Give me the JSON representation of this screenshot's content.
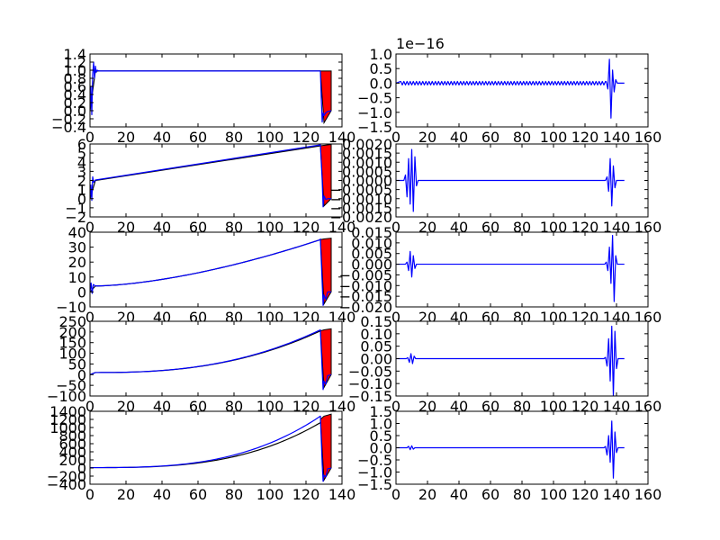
{
  "chart_data": [
    {
      "type": "line",
      "panel": "left-1",
      "xlim": [
        0,
        140
      ],
      "ylim": [
        -0.4,
        1.4
      ],
      "xticks": [
        0,
        20,
        40,
        60,
        80,
        100,
        120,
        140
      ],
      "yticks": [
        -0.4,
        -0.2,
        0.0,
        0.2,
        0.4,
        0.6,
        0.8,
        1.0,
        1.2,
        1.4
      ],
      "xtick_labels": [
        "0",
        "20",
        "40",
        "60",
        "80",
        "100",
        "120",
        "140"
      ],
      "ytick_labels": [
        "−0.4",
        "−0.2",
        "0.0",
        "0.2",
        "0.4",
        "0.6",
        "0.8",
        "1.0",
        "1.2",
        "1.4"
      ],
      "offset_label": "",
      "series": [
        {
          "color": "#000000",
          "x": [
            0,
            1.5,
            3,
            128
          ],
          "y": [
            0,
            0.5,
            0.98,
            0.98
          ]
        },
        {
          "color": "#0000ff",
          "x": [
            0,
            0.5,
            1,
            1.5,
            2,
            2.5,
            3,
            3.5,
            4,
            5,
            128,
            128.5,
            129,
            129.5,
            130,
            131,
            132,
            134
          ],
          "y": [
            0,
            0.6,
            -0.1,
            0.9,
            1.2,
            0.8,
            1.1,
            0.95,
            1.0,
            0.98,
            0.98,
            0.3,
            -0.28,
            -0.05,
            -0.12,
            -0.05,
            -0.02,
            0.0
          ]
        }
      ],
      "fill": {
        "color": "#ff0000",
        "x": [
          128,
          130,
          134
        ],
        "y_top": [
          0.98,
          0.98,
          0.98
        ],
        "y_bottom": [
          0.98,
          -0.3,
          0.0
        ]
      }
    },
    {
      "type": "line",
      "panel": "right-1",
      "xlim": [
        0,
        160
      ],
      "ylim": [
        -1.5,
        1.0
      ],
      "xticks": [
        0,
        20,
        40,
        60,
        80,
        100,
        120,
        140,
        160
      ],
      "yticks": [
        -1.5,
        -1.0,
        -0.5,
        0.0,
        0.5,
        1.0
      ],
      "xtick_labels": [
        "0",
        "20",
        "40",
        "60",
        "80",
        "100",
        "120",
        "140",
        "160"
      ],
      "ytick_labels": [
        "−1.5",
        "−1.0",
        "−0.5",
        "0.0",
        "0.5",
        "1.0"
      ],
      "offset_label": "1e−16",
      "wave": {
        "zigzag": {
          "from": 3,
          "to": 133,
          "amplitude": 0.06,
          "period": 2
        },
        "burst": {
          "center": 137,
          "amplitudes": [
            0.05,
            -0.2,
            0.82,
            -1.2,
            0.45,
            -0.3,
            0.12
          ]
        },
        "end": 145
      }
    },
    {
      "type": "line",
      "panel": "left-2",
      "xlim": [
        0,
        140
      ],
      "ylim": [
        -2,
        6
      ],
      "xticks": [
        0,
        20,
        40,
        60,
        80,
        100,
        120,
        140
      ],
      "yticks": [
        -2,
        -1,
        0,
        1,
        2,
        3,
        4,
        5,
        6
      ],
      "xtick_labels": [
        "0",
        "20",
        "40",
        "60",
        "80",
        "100",
        "120",
        "140"
      ],
      "ytick_labels": [
        "−2",
        "−1",
        "0",
        "1",
        "2",
        "3",
        "4",
        "5",
        "6"
      ],
      "offset_label": "",
      "series": [
        {
          "color": "#000000",
          "x": [
            0,
            3,
            128
          ],
          "y": [
            0,
            2.0,
            5.8
          ]
        },
        {
          "color": "#0000ff",
          "x": [
            0,
            0.5,
            1,
            1.5,
            2,
            3,
            128,
            129,
            129.5,
            130,
            131,
            132,
            134
          ],
          "y": [
            0,
            1.5,
            -0.2,
            2.4,
            1.8,
            2.05,
            5.9,
            2.0,
            -0.9,
            0.3,
            -0.1,
            0.0,
            0.0
          ]
        }
      ],
      "fill": {
        "color": "#ff0000",
        "x": [
          128,
          130,
          134
        ],
        "y_top": [
          5.8,
          5.85,
          5.95
        ],
        "y_bottom": [
          5.8,
          -0.8,
          0.0
        ]
      }
    },
    {
      "type": "line",
      "panel": "right-2",
      "xlim": [
        0,
        160
      ],
      "ylim": [
        -0.002,
        0.002
      ],
      "xticks": [
        0,
        20,
        40,
        60,
        80,
        100,
        120,
        140,
        160
      ],
      "yticks": [
        -0.002,
        -0.0015,
        -0.001,
        -0.0005,
        0.0,
        0.0005,
        0.001,
        0.0015,
        0.002
      ],
      "xtick_labels": [
        "0",
        "20",
        "40",
        "60",
        "80",
        "100",
        "120",
        "140",
        "160"
      ],
      "ytick_labels": [
        "−0.0020",
        "−0.0015",
        "−0.0010",
        "−0.0005",
        "0.0000",
        "0.0005",
        "0.0010",
        "0.0015",
        "0.0020"
      ],
      "offset_label": "",
      "wave": {
        "early": {
          "center": 10,
          "amplitudes": [
            0.0003,
            -0.0009,
            0.0012,
            -0.0013,
            0.0017,
            -0.0017,
            0.0013,
            -0.0003
          ]
        },
        "burst": {
          "center": 137,
          "amplitudes": [
            0.0002,
            -0.0006,
            0.0012,
            -0.0014,
            0.0008,
            -0.0004
          ]
        },
        "end": 145
      }
    },
    {
      "type": "line",
      "panel": "left-3",
      "xlim": [
        0,
        140
      ],
      "ylim": [
        -10,
        40
      ],
      "xticks": [
        0,
        20,
        40,
        60,
        80,
        100,
        120,
        140
      ],
      "yticks": [
        -10,
        0,
        10,
        20,
        30,
        40
      ],
      "xtick_labels": [
        "0",
        "20",
        "40",
        "60",
        "80",
        "100",
        "120",
        "140"
      ],
      "ytick_labels": [
        "−10",
        "0",
        "10",
        "20",
        "30",
        "40"
      ],
      "offset_label": "",
      "series": [
        {
          "color": "#000000",
          "curve": {
            "a": 4,
            "b": 31,
            "p": 1.6,
            "x0": 3,
            "x1": 128
          },
          "lead": {
            "x": [
              0,
              3
            ],
            "y": [
              0,
              4
            ]
          }
        },
        {
          "color": "#0000ff",
          "curve": {
            "a": 4,
            "b": 31,
            "p": 1.6,
            "x0": 3,
            "x1": 128
          },
          "lead": {
            "x": [
              0,
              0.6,
              1.2,
              1.8,
              3
            ],
            "y": [
              0,
              6,
              -1,
              5,
              4
            ]
          },
          "tail": {
            "x": [
              128,
              129,
              129.5,
              130,
              131,
              132,
              134
            ],
            "y": [
              35.5,
              6,
              -9,
              -2,
              -5,
              0,
              0
            ]
          }
        }
      ],
      "fill": {
        "color": "#ff0000",
        "x": [
          128,
          130,
          134
        ],
        "y_top": [
          35,
          35.5,
          36
        ],
        "y_bottom": [
          35,
          -8,
          0
        ]
      }
    },
    {
      "type": "line",
      "panel": "right-3",
      "xlim": [
        0,
        160
      ],
      "ylim": [
        -0.02,
        0.015
      ],
      "xticks": [
        0,
        20,
        40,
        60,
        80,
        100,
        120,
        140,
        160
      ],
      "yticks": [
        -0.02,
        -0.015,
        -0.01,
        -0.005,
        0.0,
        0.005,
        0.01,
        0.015
      ],
      "xtick_labels": [
        "0",
        "20",
        "40",
        "60",
        "80",
        "100",
        "120",
        "140",
        "160"
      ],
      "ytick_labels": [
        "−0.020",
        "−0.015",
        "−0.010",
        "−0.005",
        "0.000",
        "0.005",
        "0.010",
        "0.015"
      ],
      "offset_label": "",
      "wave": {
        "early": {
          "center": 10,
          "amplitudes": [
            0.001,
            -0.003,
            0.006,
            -0.006,
            0.004,
            -0.002
          ]
        },
        "burst": {
          "center": 137,
          "amplitudes": [
            0.001,
            -0.003,
            0.008,
            -0.009,
            0.0135,
            -0.0175,
            0.004
          ]
        },
        "end": 145
      }
    },
    {
      "type": "line",
      "panel": "left-4",
      "xlim": [
        0,
        140
      ],
      "ylim": [
        -100,
        250
      ],
      "xticks": [
        0,
        20,
        40,
        60,
        80,
        100,
        120,
        140
      ],
      "yticks": [
        -100,
        -50,
        0,
        50,
        100,
        150,
        200,
        250
      ],
      "xtick_labels": [
        "0",
        "20",
        "40",
        "60",
        "80",
        "100",
        "120",
        "140"
      ],
      "ytick_labels": [
        "−100",
        "−50",
        "0",
        "50",
        "100",
        "150",
        "200",
        "250"
      ],
      "offset_label": "",
      "series": [
        {
          "color": "#000000",
          "curve": {
            "a": 10,
            "b": 195,
            "p": 2.5,
            "x0": 3,
            "x1": 128
          },
          "lead": {
            "x": [
              0,
              3
            ],
            "y": [
              0,
              10
            ]
          }
        },
        {
          "color": "#0000ff",
          "curve": {
            "a": 10,
            "b": 200,
            "p": 2.5,
            "x0": 3,
            "x1": 128
          },
          "lead": {
            "x": [
              0,
              3
            ],
            "y": [
              0,
              10
            ]
          },
          "tail": {
            "x": [
              128,
              129,
              129.5,
              130,
              131,
              132,
              134
            ],
            "y": [
              210,
              20,
              -70,
              -30,
              -45,
              -5,
              0
            ]
          }
        }
      ],
      "fill": {
        "color": "#ff0000",
        "x": [
          128,
          130,
          134
        ],
        "y_top": [
          205,
          210,
          215
        ],
        "y_bottom": [
          205,
          -60,
          0
        ]
      }
    },
    {
      "type": "line",
      "panel": "right-4",
      "xlim": [
        0,
        160
      ],
      "ylim": [
        -0.15,
        0.15
      ],
      "xticks": [
        0,
        20,
        40,
        60,
        80,
        100,
        120,
        140,
        160
      ],
      "yticks": [
        -0.15,
        -0.1,
        -0.05,
        0.0,
        0.05,
        0.1,
        0.15
      ],
      "xtick_labels": [
        "0",
        "20",
        "40",
        "60",
        "80",
        "100",
        "120",
        "140",
        "160"
      ],
      "ytick_labels": [
        "−0.15",
        "−0.10",
        "−0.05",
        "0.00",
        "0.05",
        "0.10",
        "0.15"
      ],
      "offset_label": "",
      "wave": {
        "early": {
          "center": 10,
          "amplitudes": [
            0.004,
            -0.015,
            0.02,
            -0.02,
            0.01
          ]
        },
        "burst": {
          "center": 137,
          "amplitudes": [
            0.005,
            -0.03,
            0.08,
            -0.09,
            0.13,
            -0.15,
            0.11,
            -0.04
          ]
        },
        "end": 145
      }
    },
    {
      "type": "line",
      "panel": "left-5",
      "xlim": [
        0,
        140
      ],
      "ylim": [
        -400,
        1400
      ],
      "xticks": [
        0,
        20,
        40,
        60,
        80,
        100,
        120,
        140
      ],
      "yticks": [
        -400,
        -200,
        0,
        200,
        400,
        600,
        800,
        1000,
        1200,
        1400
      ],
      "xtick_labels": [
        "0",
        "20",
        "40",
        "60",
        "80",
        "100",
        "120",
        "140"
      ],
      "ytick_labels": [
        "−400",
        "−200",
        "0",
        "200",
        "400",
        "600",
        "800",
        "1000",
        "1200",
        "1400"
      ],
      "offset_label": "",
      "series": [
        {
          "color": "#000000",
          "curve": {
            "a": 10,
            "b": 1110,
            "p": 3.0,
            "x0": 0,
            "x1": 128
          }
        },
        {
          "color": "#0000ff",
          "curve": {
            "a": 10,
            "b": 1270,
            "p": 3.0,
            "x0": 0,
            "x1": 128
          },
          "tail": {
            "x": [
              128,
              129,
              129.5,
              130,
              131,
              132,
              134
            ],
            "y": [
              1280,
              100,
              -330,
              -180,
              -220,
              -20,
              0
            ]
          }
        }
      ],
      "fill": {
        "color": "#ff0000",
        "x": [
          128,
          130,
          134
        ],
        "y_top": [
          1200,
          1280,
          1330
        ],
        "y_bottom": [
          1200,
          -300,
          0
        ]
      }
    },
    {
      "type": "line",
      "panel": "right-5",
      "xlim": [
        0,
        160
      ],
      "ylim": [
        -1.5,
        1.5
      ],
      "xticks": [
        0,
        20,
        40,
        60,
        80,
        100,
        120,
        140,
        160
      ],
      "yticks": [
        -1.5,
        -1.0,
        -0.5,
        0.0,
        0.5,
        1.0,
        1.5
      ],
      "xtick_labels": [
        "0",
        "20",
        "40",
        "60",
        "80",
        "100",
        "120",
        "140",
        "160"
      ],
      "ytick_labels": [
        "−1.5",
        "−1.0",
        "−0.5",
        "0.0",
        "0.5",
        "1.0",
        "1.5"
      ],
      "offset_label": "",
      "wave": {
        "early": {
          "center": 10,
          "amplitudes": [
            0.06,
            -0.08,
            0.08,
            -0.06
          ]
        },
        "burst": {
          "center": 137,
          "amplitudes": [
            0.05,
            -0.3,
            0.5,
            -0.6,
            1.1,
            -1.25,
            0.65,
            -0.2
          ]
        },
        "end": 145
      }
    }
  ]
}
